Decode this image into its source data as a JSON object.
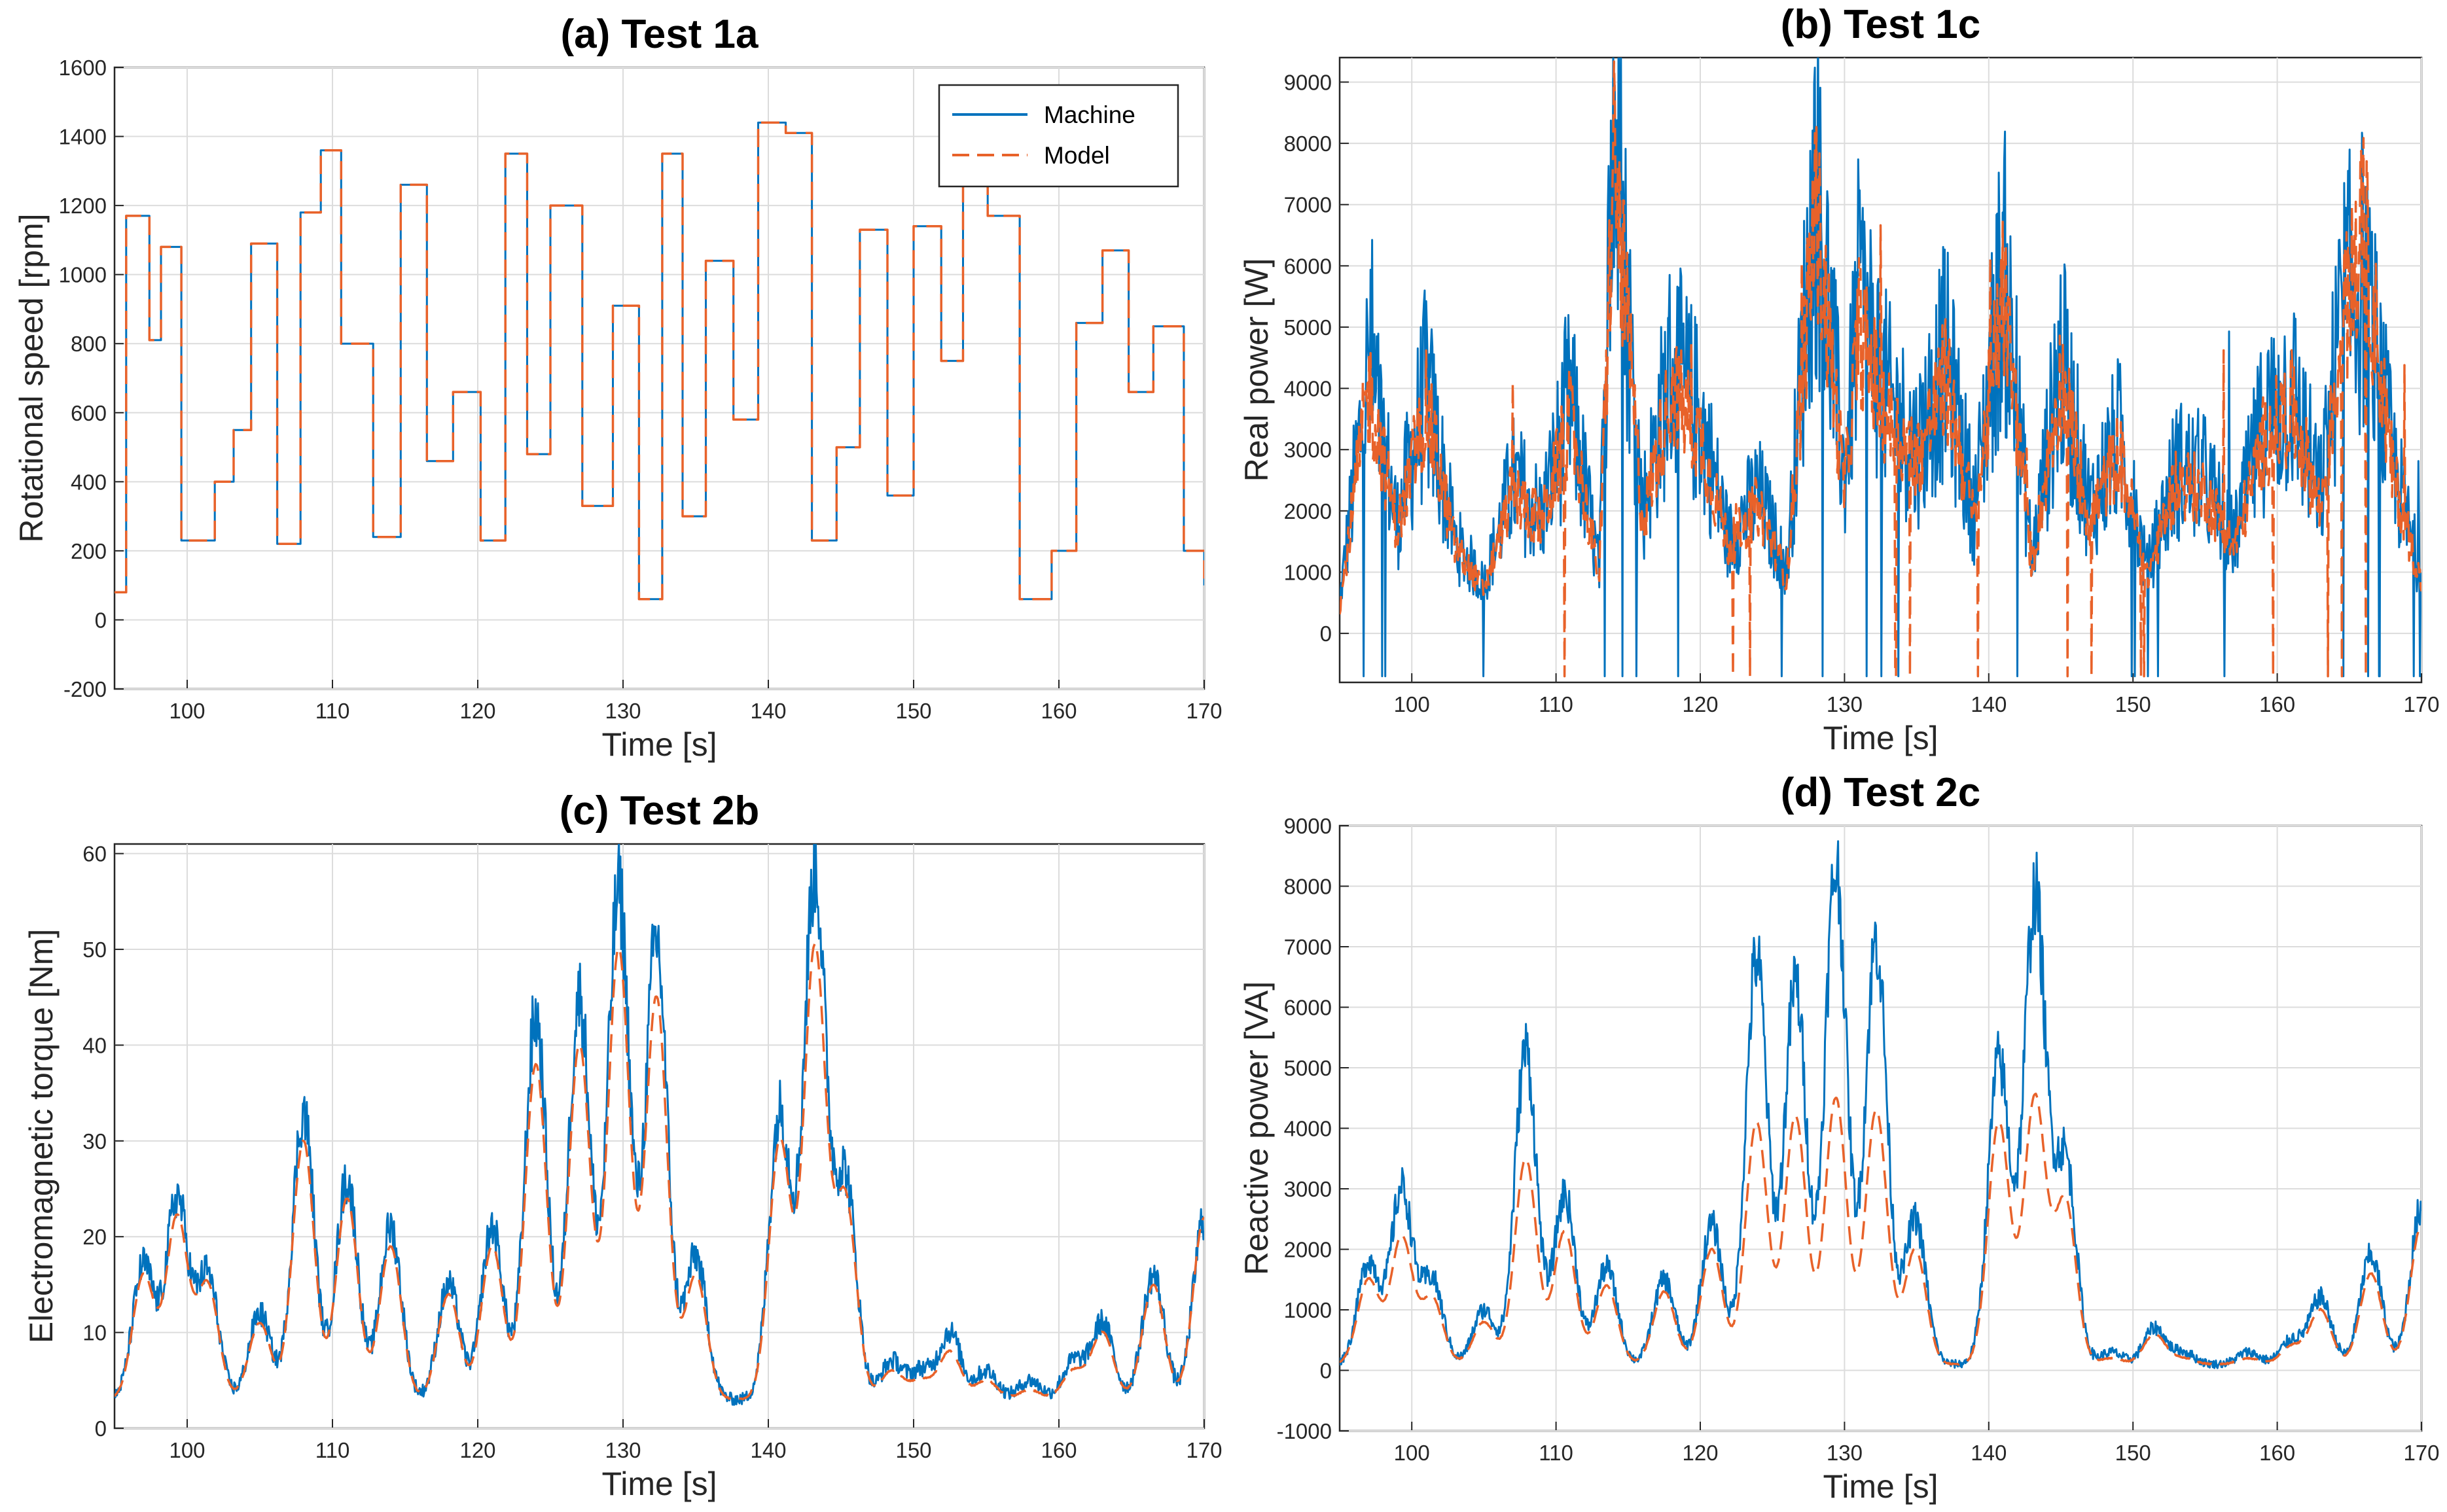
{
  "colors": {
    "machine": "#0072BD",
    "model": "#E8622A"
  },
  "chart_data": [
    {
      "id": "a",
      "type": "line",
      "title": "(a) Test 1a",
      "xlabel": "Time [s]",
      "ylabel": "Rotational speed [rpm]",
      "xlim": [
        95,
        170
      ],
      "ylim": [
        -200,
        1600
      ],
      "xticks": [
        100,
        110,
        120,
        130,
        140,
        150,
        160,
        170
      ],
      "yticks": [
        -200,
        0,
        200,
        400,
        600,
        800,
        1000,
        1200,
        1400,
        1600
      ],
      "grid": true,
      "legend": {
        "position": "top-right",
        "entries": [
          "Machine",
          "Model"
        ]
      },
      "style": "step",
      "series": [
        {
          "name": "Machine",
          "x": [
            95,
            95.8,
            97.4,
            98.2,
            99.6,
            101.9,
            103.2,
            104.4,
            106.2,
            107.8,
            109.2,
            110.6,
            112.8,
            114.7,
            116.5,
            118.3,
            120.2,
            121.9,
            123.4,
            125.0,
            127.2,
            129.3,
            131.1,
            132.7,
            134.1,
            135.7,
            137.6,
            139.3,
            141.2,
            143.0,
            144.7,
            146.3,
            148.2,
            150.0,
            151.9,
            153.4,
            155.1,
            157.3,
            159.5,
            161.2,
            163.0,
            164.8,
            166.5,
            168.6,
            170
          ],
          "y": [
            80,
            1170,
            810,
            1080,
            230,
            400,
            550,
            1090,
            220,
            1180,
            1360,
            800,
            240,
            1260,
            460,
            660,
            230,
            1350,
            480,
            1200,
            330,
            910,
            60,
            1350,
            300,
            1040,
            580,
            1440,
            1410,
            230,
            500,
            1130,
            360,
            1140,
            750,
            1290,
            1170,
            60,
            200,
            860,
            1070,
            660,
            850,
            200,
            100
          ]
        },
        {
          "name": "Model",
          "x": [
            95,
            95.8,
            97.4,
            98.2,
            99.6,
            101.9,
            103.2,
            104.4,
            106.2,
            107.8,
            109.2,
            110.6,
            112.8,
            114.7,
            116.5,
            118.3,
            120.2,
            121.9,
            123.4,
            125.0,
            127.2,
            129.3,
            131.1,
            132.7,
            134.1,
            135.7,
            137.6,
            139.3,
            141.2,
            143.0,
            144.7,
            146.3,
            148.2,
            150.0,
            151.9,
            153.4,
            155.1,
            157.3,
            159.5,
            161.2,
            163.0,
            164.8,
            166.5,
            168.6,
            170
          ],
          "y": [
            80,
            1170,
            810,
            1080,
            230,
            400,
            550,
            1090,
            220,
            1180,
            1360,
            800,
            240,
            1260,
            460,
            660,
            230,
            1350,
            480,
            1200,
            330,
            910,
            60,
            1350,
            300,
            1040,
            580,
            1440,
            1410,
            230,
            500,
            1130,
            360,
            1140,
            750,
            1290,
            1170,
            60,
            200,
            860,
            1070,
            660,
            850,
            200,
            100
          ]
        }
      ]
    },
    {
      "id": "b",
      "type": "line",
      "title": "(b) Test 1c",
      "xlabel": "Time [s]",
      "ylabel": "Real power [W]",
      "xlim": [
        95,
        170
      ],
      "ylim": [
        -800,
        9400
      ],
      "xticks": [
        100,
        110,
        120,
        130,
        140,
        150,
        160,
        170
      ],
      "yticks": [
        0,
        1000,
        2000,
        3000,
        4000,
        5000,
        6000,
        7000,
        8000,
        9000
      ],
      "grid": true,
      "style": "noisy",
      "series": [
        {
          "name": "Machine",
          "x": [
            95,
            97,
            99,
            101,
            103,
            105,
            107,
            109,
            111,
            113,
            114,
            116,
            118,
            120,
            122,
            124,
            126,
            128,
            130,
            131,
            133,
            135,
            137,
            139,
            141,
            143,
            145,
            147,
            149,
            151,
            153,
            155,
            157,
            159,
            161,
            163,
            164.5,
            166,
            168,
            170
          ],
          "y": [
            500,
            4400,
            1800,
            4000,
            1500,
            800,
            2500,
            1900,
            3800,
            1000,
            8500,
            2000,
            4400,
            3500,
            1500,
            2300,
            1000,
            7500,
            2500,
            5500,
            3800,
            3000,
            4500,
            2000,
            6000,
            1200,
            4500,
            2000,
            3200,
            1000,
            2700,
            2500,
            1500,
            3400,
            4000,
            2200,
            5300,
            5800,
            2800,
            900
          ]
        },
        {
          "name": "Model",
          "x": [
            95,
            97,
            99,
            101,
            103,
            105,
            107,
            109,
            111,
            113,
            114,
            116,
            118,
            120,
            122,
            124,
            126,
            128,
            130,
            131,
            133,
            135,
            137,
            139,
            141,
            143,
            145,
            147,
            149,
            151,
            153,
            155,
            157,
            159,
            161,
            163,
            164.5,
            166,
            168,
            170
          ],
          "y": [
            400,
            4000,
            1700,
            3700,
            1400,
            700,
            2300,
            1800,
            3500,
            900,
            7800,
            1800,
            4000,
            3200,
            1400,
            2100,
            900,
            7000,
            2300,
            5000,
            3500,
            2800,
            4200,
            1800,
            5600,
            1100,
            4200,
            1800,
            3000,
            900,
            2500,
            2300,
            1400,
            3100,
            3700,
            2000,
            4900,
            6600,
            2600,
            800
          ]
        }
      ]
    },
    {
      "id": "c",
      "type": "line",
      "title": "(c) Test 2b",
      "xlabel": "Time [s]",
      "ylabel": "Electromagnetic torque [Nm]",
      "xlim": [
        95,
        170
      ],
      "ylim": [
        0,
        61
      ],
      "xticks": [
        100,
        110,
        120,
        130,
        140,
        150,
        160,
        170
      ],
      "yticks": [
        0,
        10,
        20,
        30,
        40,
        50,
        60
      ],
      "grid": true,
      "style": "peaks",
      "baseline": 3,
      "series": [
        {
          "name": "Machine",
          "peaks": [
            [
              97,
              17
            ],
            [
              99.3,
              24
            ],
            [
              101.4,
              16
            ],
            [
              105,
              12
            ],
            [
              108,
              33
            ],
            [
              111,
              26
            ],
            [
              114,
              21
            ],
            [
              118,
              15
            ],
            [
              121,
              21
            ],
            [
              124,
              43
            ],
            [
              127,
              45
            ],
            [
              129.7,
              56
            ],
            [
              132.3,
              51
            ],
            [
              135,
              18
            ],
            [
              140.8,
              33
            ],
            [
              143.2,
              58
            ],
            [
              145.3,
              26
            ],
            [
              148.5,
              7
            ],
            [
              150.5,
              6
            ],
            [
              152.5,
              10
            ],
            [
              155,
              6
            ],
            [
              158,
              5
            ],
            [
              161,
              7
            ],
            [
              163,
              11
            ],
            [
              166.5,
              16
            ],
            [
              170,
              22
            ]
          ]
        },
        {
          "name": "Model",
          "peaks": [
            [
              97,
              16
            ],
            [
              99.3,
              22
            ],
            [
              101.4,
              15
            ],
            [
              105,
              11
            ],
            [
              108,
              30
            ],
            [
              111,
              24
            ],
            [
              114,
              19
            ],
            [
              118,
              14
            ],
            [
              121,
              19
            ],
            [
              124,
              38
            ],
            [
              127,
              40
            ],
            [
              129.7,
              50
            ],
            [
              132.3,
              45
            ],
            [
              135,
              16
            ],
            [
              140.8,
              30
            ],
            [
              143.2,
              50
            ],
            [
              145.3,
              24
            ],
            [
              148.5,
              6
            ],
            [
              150.5,
              5
            ],
            [
              152.5,
              8
            ],
            [
              155,
              5
            ],
            [
              158,
              4
            ],
            [
              161,
              6
            ],
            [
              163,
              10
            ],
            [
              166.5,
              15
            ],
            [
              170,
              22
            ]
          ]
        }
      ]
    },
    {
      "id": "d",
      "type": "line",
      "title": "(d) Test 2c",
      "xlabel": "Time [s]",
      "ylabel": "Reactive power [VA]",
      "xlim": [
        95,
        170
      ],
      "ylim": [
        -1000,
        9000
      ],
      "xticks": [
        100,
        110,
        120,
        130,
        140,
        150,
        160,
        170
      ],
      "yticks": [
        -1000,
        0,
        1000,
        2000,
        3000,
        4000,
        5000,
        6000,
        7000,
        8000,
        9000
      ],
      "grid": true,
      "style": "peaks",
      "baseline": 100,
      "series": [
        {
          "name": "Machine",
          "peaks": [
            [
              97,
              1800
            ],
            [
              99.3,
              3000
            ],
            [
              101.4,
              1500
            ],
            [
              105,
              1000
            ],
            [
              107.9,
              5300
            ],
            [
              110.6,
              2900
            ],
            [
              113.5,
              1700
            ],
            [
              117.5,
              1500
            ],
            [
              120.8,
              2400
            ],
            [
              123.9,
              6800
            ],
            [
              126.6,
              6400
            ],
            [
              129.4,
              8300
            ],
            [
              132.2,
              7100
            ],
            [
              134.9,
              2500
            ],
            [
              140.7,
              5100
            ],
            [
              143.2,
              7800
            ],
            [
              145.3,
              3500
            ],
            [
              148.5,
              300
            ],
            [
              151.5,
              700
            ],
            [
              153.5,
              300
            ],
            [
              158,
              300
            ],
            [
              161,
              500
            ],
            [
              163,
              1200
            ],
            [
              166.5,
              1900
            ],
            [
              170,
              2700
            ]
          ]
        },
        {
          "name": "Model",
          "peaks": [
            [
              97,
              1500
            ],
            [
              99.3,
              2200
            ],
            [
              101.4,
              1200
            ],
            [
              105,
              800
            ],
            [
              107.9,
              3500
            ],
            [
              110.6,
              2300
            ],
            [
              113.5,
              1400
            ],
            [
              117.5,
              1300
            ],
            [
              120.8,
              2000
            ],
            [
              123.9,
              4100
            ],
            [
              126.6,
              4200
            ],
            [
              129.4,
              4500
            ],
            [
              132.2,
              4300
            ],
            [
              134.9,
              2000
            ],
            [
              140.7,
              4100
            ],
            [
              143.2,
              4500
            ],
            [
              145.3,
              2800
            ],
            [
              148.5,
              200
            ],
            [
              151.5,
              600
            ],
            [
              153.5,
              200
            ],
            [
              158,
              200
            ],
            [
              161,
              400
            ],
            [
              163,
              1000
            ],
            [
              166.5,
              1600
            ],
            [
              170,
              2400
            ]
          ]
        }
      ]
    }
  ]
}
